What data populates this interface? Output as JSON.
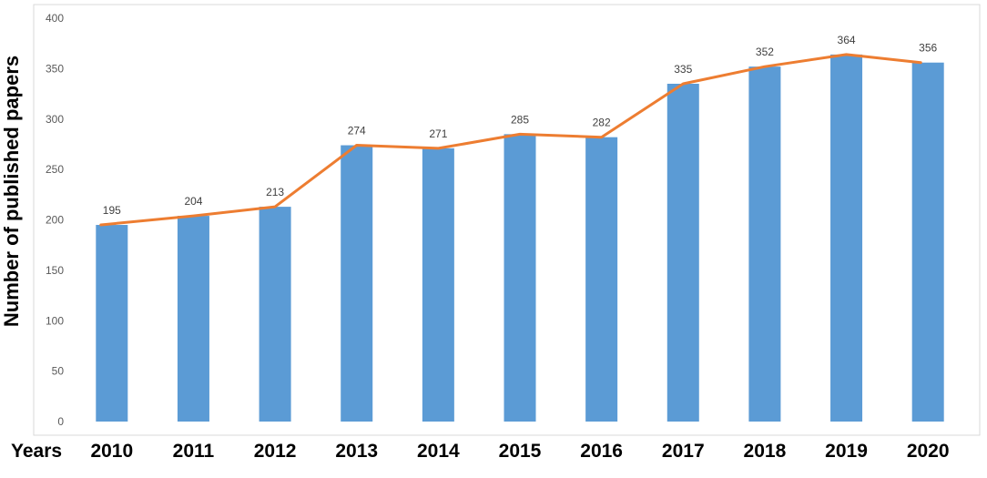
{
  "chart_data": {
    "type": "bar",
    "title": "",
    "xlabel": "Years",
    "ylabel": "Number of published papers",
    "categories": [
      "2010",
      "2011",
      "2012",
      "2013",
      "2014",
      "2015",
      "2016",
      "2017",
      "2018",
      "2019",
      "2020"
    ],
    "series": [
      {
        "type": "bar",
        "values": [
          195,
          204,
          213,
          274,
          271,
          285,
          282,
          335,
          352,
          364,
          356
        ]
      },
      {
        "type": "line",
        "values": [
          195,
          204,
          213,
          274,
          271,
          285,
          282,
          335,
          352,
          364,
          356
        ]
      }
    ],
    "data_labels": [
      "195",
      "204",
      "213",
      "274",
      "271",
      "285",
      "282",
      "335",
      "352",
      "364",
      "356"
    ],
    "ylim": [
      0,
      400
    ],
    "yticks": [
      "0",
      "50",
      "100",
      "150",
      "200",
      "250",
      "300",
      "350",
      "400"
    ],
    "grid": false,
    "legend": "none",
    "colors": {
      "bar": "#5b9bd5",
      "line": "#ed7d31",
      "frame": "#d9d9d9"
    }
  }
}
